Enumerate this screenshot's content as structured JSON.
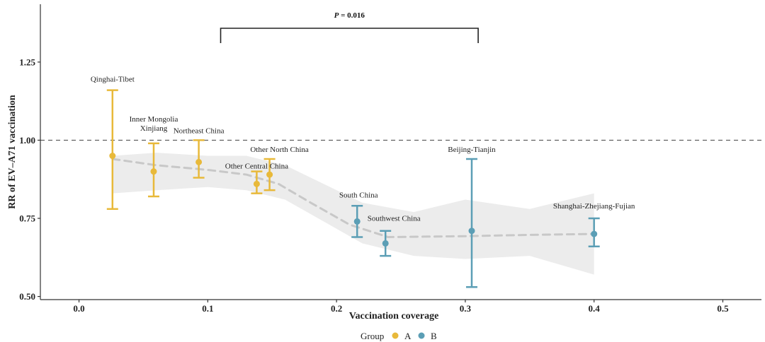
{
  "chart_data": {
    "type": "scatter",
    "xlabel": "Vaccination coverage",
    "ylabel": "RR of EV–A71 vaccination",
    "xlim": [
      -0.03,
      0.53
    ],
    "ylim": [
      0.49,
      1.435
    ],
    "x_ticks": [
      "0.0",
      "0.1",
      "0.2",
      "0.3",
      "0.4",
      "0.5"
    ],
    "y_ticks": [
      "0.50",
      "0.75",
      "1.00",
      "1.25"
    ],
    "reference_line": 1.0,
    "significance": {
      "label_prefix": "P",
      "label_rest": " = 0.016",
      "x_from": 0.11,
      "x_to": 0.31
    },
    "legend": {
      "title": "Group",
      "entries": [
        {
          "name": "A",
          "color": "#e8b93a"
        },
        {
          "name": "B",
          "color": "#5b9eb5"
        }
      ],
      "placement": "bottom"
    },
    "colors": {
      "A": "#e8b93a",
      "B": "#5b9eb5",
      "trend": "#c8c8c8",
      "band": "#ececec"
    },
    "points": [
      {
        "label": "Qinghai-Tibet",
        "group": "A",
        "x": 0.026,
        "y": 0.95,
        "lo": 0.78,
        "hi": 1.16
      },
      {
        "label": "Inner Mongolia\nXinjiang",
        "group": "A",
        "x": 0.058,
        "y": 0.9,
        "lo": 0.82,
        "hi": 0.99
      },
      {
        "label": "Northeast China",
        "group": "A",
        "x": 0.093,
        "y": 0.93,
        "lo": 0.88,
        "hi": 1.0
      },
      {
        "label": "Other Central China",
        "group": "A",
        "x": 0.138,
        "y": 0.86,
        "lo": 0.83,
        "hi": 0.9
      },
      {
        "label": "Other North China",
        "group": "A",
        "x": 0.148,
        "y": 0.89,
        "lo": 0.84,
        "hi": 0.94
      },
      {
        "label": "South China",
        "group": "B",
        "x": 0.216,
        "y": 0.74,
        "lo": 0.69,
        "hi": 0.79
      },
      {
        "label": "Southwest China",
        "group": "B",
        "x": 0.238,
        "y": 0.67,
        "lo": 0.63,
        "hi": 0.71
      },
      {
        "label": "Beijing-Tianjin",
        "group": "B",
        "x": 0.305,
        "y": 0.71,
        "lo": 0.53,
        "hi": 0.94
      },
      {
        "label": "Shanghai-Zhejiang-Fujian",
        "group": "B",
        "x": 0.4,
        "y": 0.7,
        "lo": 0.66,
        "hi": 0.75
      }
    ],
    "trend": [
      {
        "x": 0.026,
        "y": 0.94
      },
      {
        "x": 0.06,
        "y": 0.92
      },
      {
        "x": 0.1,
        "y": 0.905
      },
      {
        "x": 0.13,
        "y": 0.89
      },
      {
        "x": 0.155,
        "y": 0.86
      },
      {
        "x": 0.18,
        "y": 0.8
      },
      {
        "x": 0.21,
        "y": 0.73
      },
      {
        "x": 0.24,
        "y": 0.69
      },
      {
        "x": 0.3,
        "y": 0.693
      },
      {
        "x": 0.35,
        "y": 0.697
      },
      {
        "x": 0.4,
        "y": 0.7
      }
    ],
    "band": [
      {
        "x": 0.026,
        "lo": 0.83,
        "hi": 0.95
      },
      {
        "x": 0.06,
        "lo": 0.84,
        "hi": 0.96
      },
      {
        "x": 0.1,
        "lo": 0.85,
        "hi": 0.95
      },
      {
        "x": 0.13,
        "lo": 0.84,
        "hi": 0.95
      },
      {
        "x": 0.16,
        "lo": 0.81,
        "hi": 0.92
      },
      {
        "x": 0.19,
        "lo": 0.74,
        "hi": 0.86
      },
      {
        "x": 0.22,
        "lo": 0.67,
        "hi": 0.8
      },
      {
        "x": 0.26,
        "lo": 0.63,
        "hi": 0.77
      },
      {
        "x": 0.3,
        "lo": 0.62,
        "hi": 0.81
      },
      {
        "x": 0.35,
        "lo": 0.63,
        "hi": 0.78
      },
      {
        "x": 0.4,
        "lo": 0.57,
        "hi": 0.83
      }
    ]
  }
}
